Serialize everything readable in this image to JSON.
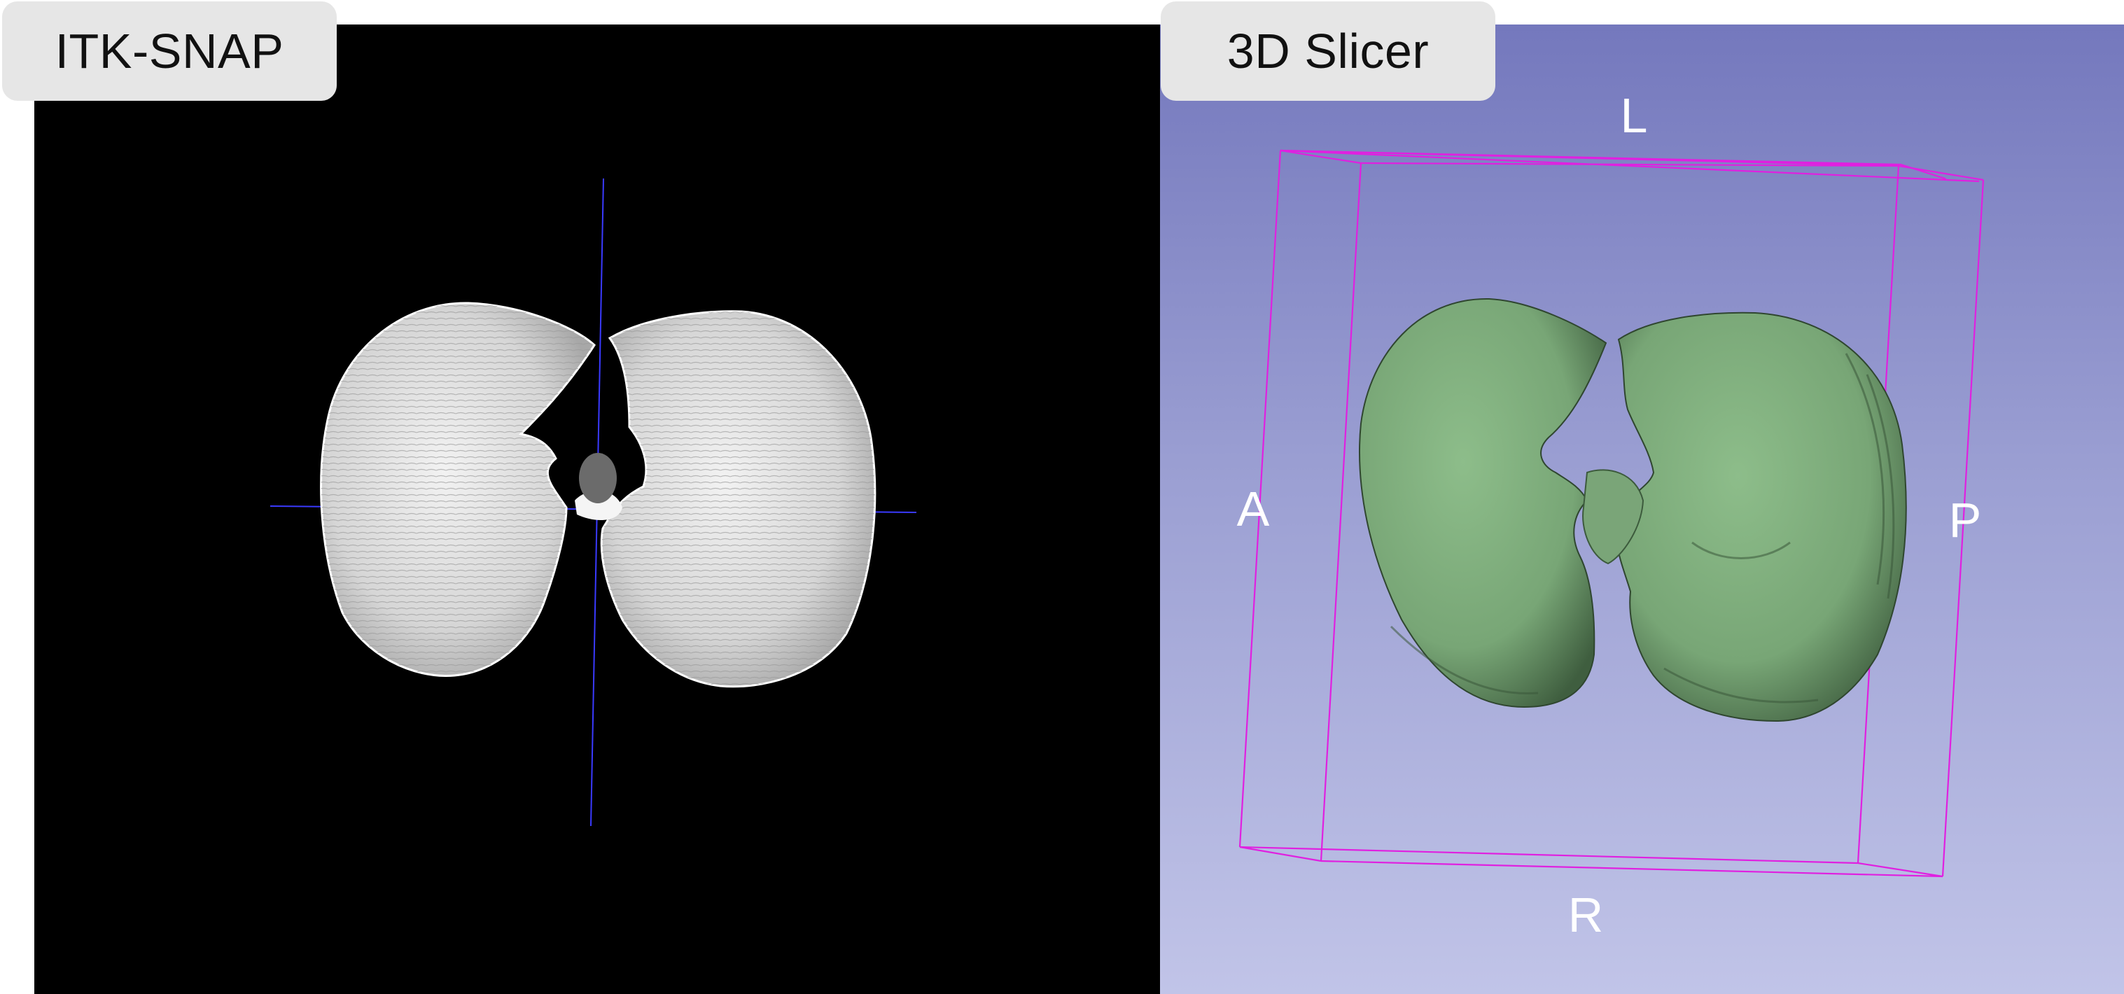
{
  "panels": {
    "itk": {
      "title": "ITK-SNAP",
      "background_color": "#000000",
      "surface_color": "#d9d9d9",
      "crosshair_color": "#3a3aff",
      "trachea_color": "#6b6b6b"
    },
    "slicer": {
      "title": "3D Slicer",
      "background_top_color": "#7478bd",
      "background_bottom_color": "#c1c4e8",
      "surface_color": "#7fad7f",
      "bounding_box_color": "#e020e0",
      "orientation": {
        "top": "L",
        "left": "A",
        "right": "P",
        "bottom": "R"
      }
    }
  }
}
